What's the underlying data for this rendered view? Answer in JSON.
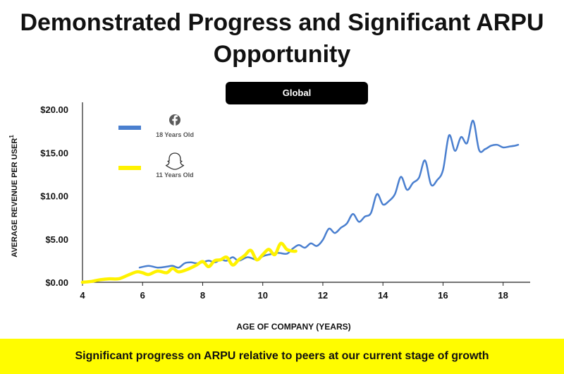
{
  "page": {
    "title_line1": "Demonstrated Progress and Significant ARPU",
    "title_line2": "Opportunity",
    "region_button": "Global",
    "footer": "Significant progress on ARPU relative to peers at our current stage of growth"
  },
  "colors": {
    "facebook": "#4a7fcf",
    "snapchat": "#fff200",
    "accent": "#fffc00"
  },
  "chart_data": {
    "type": "line",
    "title": "",
    "xlabel": "AGE OF COMPANY (YEARS)",
    "ylabel": "AVERAGE REVENUE PER USER",
    "ylabel_sup": "1",
    "xlim": [
      4,
      18.9
    ],
    "ylim": [
      0,
      20
    ],
    "xticks": [
      4,
      6,
      8,
      10,
      12,
      14,
      16,
      18
    ],
    "xtick_labels": [
      "4",
      "6",
      "8",
      "10",
      "12",
      "14",
      "16",
      "18"
    ],
    "yticks": [
      0,
      5,
      10,
      15,
      20
    ],
    "ytick_labels": [
      "$0.00",
      "$5.00",
      "$10.00",
      "$15.00",
      "$20.00"
    ],
    "legend_position": "top-left",
    "series": [
      {
        "name": "18 Years Old",
        "icon": "facebook-icon",
        "color": "#4a7fcf",
        "x": [
          5.9,
          6.2,
          6.5,
          6.8,
          7.0,
          7.2,
          7.4,
          7.6,
          7.8,
          8.0,
          8.2,
          8.4,
          8.6,
          8.8,
          9.0,
          9.2,
          9.5,
          9.8,
          10.0,
          10.2,
          10.5,
          10.8,
          11.0,
          11.2,
          11.4,
          11.6,
          11.8,
          12.0,
          12.2,
          12.4,
          12.6,
          12.8,
          13.0,
          13.2,
          13.4,
          13.6,
          13.8,
          14.0,
          14.2,
          14.4,
          14.6,
          14.8,
          15.0,
          15.2,
          15.4,
          15.6,
          15.8,
          16.0,
          16.2,
          16.4,
          16.6,
          16.8,
          17.0,
          17.2,
          17.4,
          17.6,
          17.8,
          18.0,
          18.2,
          18.4,
          18.5
        ],
        "y": [
          1.7,
          1.9,
          1.7,
          1.8,
          1.9,
          1.7,
          2.2,
          2.3,
          2.2,
          2.3,
          2.5,
          2.3,
          2.6,
          2.5,
          2.9,
          2.5,
          2.9,
          2.6,
          3.0,
          3.2,
          3.4,
          3.3,
          3.9,
          4.3,
          4.0,
          4.5,
          4.2,
          4.9,
          6.2,
          5.7,
          6.3,
          6.8,
          7.9,
          7.0,
          7.6,
          8.0,
          10.2,
          9.0,
          9.4,
          10.2,
          12.2,
          10.7,
          11.5,
          12.1,
          14.1,
          11.3,
          11.8,
          13.0,
          17.0,
          15.2,
          16.8,
          16.1,
          18.7,
          15.3,
          15.4,
          15.8,
          15.9,
          15.6,
          15.7,
          15.8,
          15.9
        ]
      },
      {
        "name": "11 Years Old",
        "icon": "snapchat-ghost-icon",
        "color": "#fff200",
        "x": [
          4.0,
          4.3,
          4.6,
          4.9,
          5.2,
          5.5,
          5.8,
          6.0,
          6.2,
          6.5,
          6.8,
          7.0,
          7.2,
          7.5,
          7.8,
          8.0,
          8.2,
          8.4,
          8.6,
          8.8,
          9.0,
          9.2,
          9.4,
          9.6,
          9.8,
          10.0,
          10.2,
          10.4,
          10.6,
          10.8,
          11.0,
          11.1
        ],
        "y": [
          0.0,
          0.1,
          0.3,
          0.4,
          0.4,
          0.8,
          1.2,
          1.1,
          0.9,
          1.3,
          1.1,
          1.6,
          1.2,
          1.5,
          2.0,
          2.4,
          1.8,
          2.5,
          2.6,
          2.9,
          2.0,
          2.6,
          3.1,
          3.7,
          2.6,
          3.2,
          3.8,
          3.2,
          4.5,
          3.8,
          3.6,
          3.6
        ]
      }
    ]
  }
}
